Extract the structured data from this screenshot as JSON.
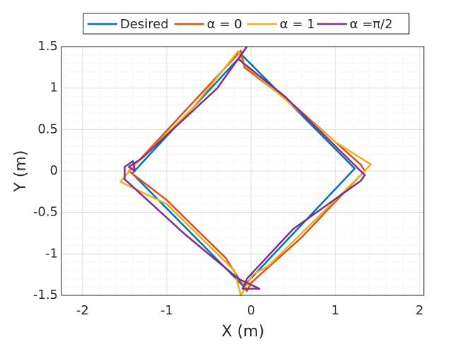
{
  "chart_data": {
    "type": "line",
    "xlabel": "X (m)",
    "ylabel": "Y (m)",
    "xlim": [
      -2.25,
      2.05
    ],
    "ylim": [
      -1.5,
      1.5
    ],
    "xticks": [
      -2,
      -1,
      0,
      1,
      2
    ],
    "yticks": [
      1.5,
      1,
      0.5,
      0,
      -0.5,
      -1,
      -1.5
    ],
    "grid": true,
    "minor_grid": true,
    "legend": "top",
    "series": [
      {
        "name": "Desired",
        "color": "#0072bd",
        "x": [
          -0.11,
          1.23,
          -0.09,
          -1.41,
          -0.11
        ],
        "values": [
          1.4,
          0.03,
          -1.39,
          -0.03,
          1.4
        ]
      },
      {
        "name": "α = 0",
        "color": "#d95319",
        "x": [
          -1.4,
          -0.12,
          -0.08,
          0.5,
          1.3,
          1.35,
          1.3,
          0.6,
          0,
          -0.05,
          -0.3,
          -1.0,
          -1.45,
          -1.4
        ],
        "values": [
          0.05,
          1.45,
          1.25,
          0.8,
          0.08,
          0.0,
          -0.05,
          -0.8,
          -1.35,
          -1.45,
          -1.05,
          -0.35,
          0.0,
          0.05
        ]
      },
      {
        "name": "α = 1",
        "color": "#edb120",
        "x": [
          -0.15,
          -0.1,
          1.0,
          1.42,
          1.3,
          0.2,
          0.02,
          -0.12,
          -0.2,
          -1.0,
          -1.55,
          -1.4,
          -0.7,
          -0.15
        ],
        "values": [
          1.45,
          1.3,
          0.35,
          0.08,
          -0.05,
          -1.15,
          -1.25,
          -1.5,
          -1.2,
          -0.4,
          -0.13,
          0.05,
          0.75,
          1.45
        ]
      },
      {
        "name": "α =π/2",
        "color": "#7e2f8e",
        "x": [
          -0.05,
          -0.15,
          0.4,
          1.35,
          1.3,
          0.5,
          -0.05,
          -0.1,
          0.1,
          -0.15,
          -0.8,
          -1.5,
          -1.5,
          -1.4,
          -1.38,
          -1.45,
          -1.3,
          -0.4,
          -0.05
        ],
        "values": [
          1.5,
          1.35,
          0.9,
          -0.05,
          -0.12,
          -0.7,
          -1.3,
          -1.42,
          -1.42,
          -1.3,
          -0.75,
          -0.1,
          0.05,
          0.12,
          0.0,
          0.05,
          0.15,
          1.0,
          1.5
        ]
      }
    ]
  }
}
